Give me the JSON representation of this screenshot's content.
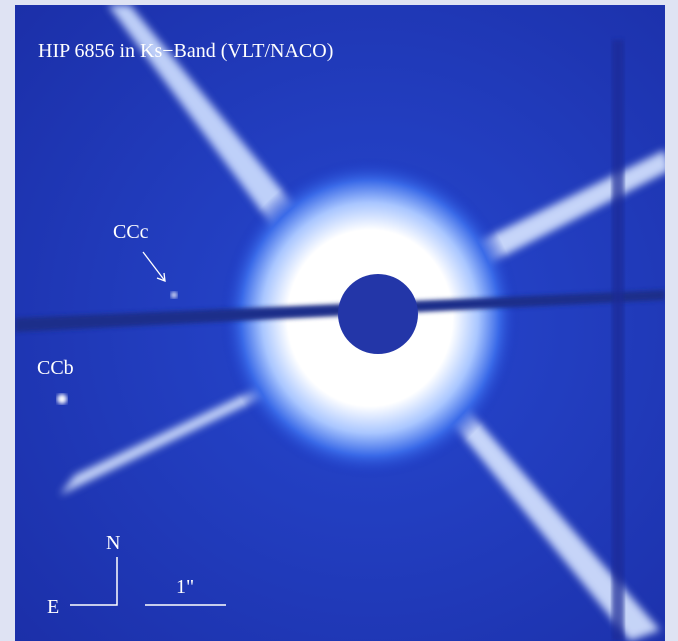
{
  "title": "HIP 6856 in Ks−Band (VLT/NACO)",
  "labels": [
    {
      "name": "CCc"
    },
    {
      "name": "CCb"
    }
  ],
  "compass": {
    "north": "N",
    "east": "E"
  },
  "scale_bar": "1\""
}
